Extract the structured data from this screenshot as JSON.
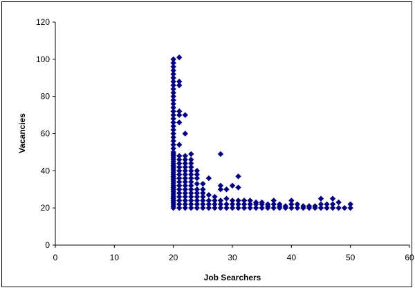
{
  "chart_data": {
    "type": "scatter",
    "title": "",
    "xlabel": "Job Searchers",
    "ylabel": "Vacancies",
    "xlim": [
      0,
      60
    ],
    "ylim": [
      0,
      120
    ],
    "x_ticks": [
      0,
      10,
      20,
      30,
      40,
      50,
      60
    ],
    "y_ticks": [
      0,
      20,
      40,
      60,
      80,
      100,
      120
    ],
    "grid": false,
    "legend": "none",
    "marker": "diamond",
    "marker_color": "#000080",
    "series": [
      {
        "points": [
          [
            20,
            20
          ],
          [
            20,
            21
          ],
          [
            20,
            22
          ],
          [
            20,
            23
          ],
          [
            20,
            24
          ],
          [
            20,
            25
          ],
          [
            20,
            26
          ],
          [
            20,
            27
          ],
          [
            20,
            28
          ],
          [
            20,
            29
          ],
          [
            20,
            30
          ],
          [
            20,
            31
          ],
          [
            20,
            32
          ],
          [
            20,
            33
          ],
          [
            20,
            34
          ],
          [
            20,
            35
          ],
          [
            20,
            36
          ],
          [
            20,
            37
          ],
          [
            20,
            38
          ],
          [
            20,
            39
          ],
          [
            20,
            40
          ],
          [
            20,
            41
          ],
          [
            20,
            42
          ],
          [
            20,
            43
          ],
          [
            20,
            44
          ],
          [
            20,
            45
          ],
          [
            20,
            46
          ],
          [
            20,
            47
          ],
          [
            20,
            48
          ],
          [
            20,
            49
          ],
          [
            20,
            50
          ],
          [
            20,
            52
          ],
          [
            20,
            54
          ],
          [
            20,
            56
          ],
          [
            20,
            58
          ],
          [
            20,
            60
          ],
          [
            20,
            62
          ],
          [
            20,
            64
          ],
          [
            20,
            66
          ],
          [
            20,
            68
          ],
          [
            20,
            70
          ],
          [
            20,
            72
          ],
          [
            20,
            74
          ],
          [
            20,
            76
          ],
          [
            20,
            78
          ],
          [
            20,
            80
          ],
          [
            20,
            82
          ],
          [
            20,
            84
          ],
          [
            20,
            86
          ],
          [
            20,
            88
          ],
          [
            20,
            90
          ],
          [
            20,
            92
          ],
          [
            20,
            94
          ],
          [
            20,
            96
          ],
          [
            20,
            98
          ],
          [
            20,
            100
          ],
          [
            21,
            20
          ],
          [
            21,
            22
          ],
          [
            21,
            24
          ],
          [
            21,
            26
          ],
          [
            21,
            28
          ],
          [
            21,
            30
          ],
          [
            21,
            32
          ],
          [
            21,
            34
          ],
          [
            21,
            36
          ],
          [
            21,
            38
          ],
          [
            21,
            40
          ],
          [
            21,
            42
          ],
          [
            21,
            44
          ],
          [
            21,
            46
          ],
          [
            21,
            48
          ],
          [
            21,
            54
          ],
          [
            21,
            66
          ],
          [
            21,
            70
          ],
          [
            21,
            72
          ],
          [
            21,
            86
          ],
          [
            21,
            88
          ],
          [
            21,
            101
          ],
          [
            22,
            20
          ],
          [
            22,
            22
          ],
          [
            22,
            24
          ],
          [
            22,
            26
          ],
          [
            22,
            28
          ],
          [
            22,
            30
          ],
          [
            22,
            32
          ],
          [
            22,
            34
          ],
          [
            22,
            36
          ],
          [
            22,
            38
          ],
          [
            22,
            40
          ],
          [
            22,
            42
          ],
          [
            22,
            44
          ],
          [
            22,
            46
          ],
          [
            22,
            48
          ],
          [
            22,
            60
          ],
          [
            22,
            70
          ],
          [
            23,
            20
          ],
          [
            23,
            22
          ],
          [
            23,
            24
          ],
          [
            23,
            26
          ],
          [
            23,
            28
          ],
          [
            23,
            30
          ],
          [
            23,
            32
          ],
          [
            23,
            34
          ],
          [
            23,
            36
          ],
          [
            23,
            38
          ],
          [
            23,
            40
          ],
          [
            23,
            42
          ],
          [
            23,
            44
          ],
          [
            23,
            46
          ],
          [
            23,
            49
          ],
          [
            24,
            20
          ],
          [
            24,
            22
          ],
          [
            24,
            24
          ],
          [
            24,
            26
          ],
          [
            24,
            28
          ],
          [
            24,
            30
          ],
          [
            24,
            33
          ],
          [
            24,
            36
          ],
          [
            24,
            38
          ],
          [
            24,
            40
          ],
          [
            25,
            20
          ],
          [
            25,
            22
          ],
          [
            25,
            24
          ],
          [
            25,
            26
          ],
          [
            25,
            28
          ],
          [
            25,
            30
          ],
          [
            25,
            33
          ],
          [
            26,
            20
          ],
          [
            26,
            22
          ],
          [
            26,
            24
          ],
          [
            26,
            27
          ],
          [
            26,
            36
          ],
          [
            27,
            20
          ],
          [
            27,
            22
          ],
          [
            27,
            24
          ],
          [
            27,
            26
          ],
          [
            28,
            20
          ],
          [
            28,
            22
          ],
          [
            28,
            24
          ],
          [
            28,
            30
          ],
          [
            28,
            32
          ],
          [
            28,
            49
          ],
          [
            29,
            20
          ],
          [
            29,
            22
          ],
          [
            29,
            25
          ],
          [
            29,
            30
          ],
          [
            30,
            20
          ],
          [
            30,
            22
          ],
          [
            30,
            24
          ],
          [
            30,
            32
          ],
          [
            31,
            20
          ],
          [
            31,
            22
          ],
          [
            31,
            24
          ],
          [
            31,
            31
          ],
          [
            31,
            37
          ],
          [
            32,
            20
          ],
          [
            32,
            22
          ],
          [
            32,
            24
          ],
          [
            33,
            20
          ],
          [
            33,
            22
          ],
          [
            33,
            24
          ],
          [
            34,
            20
          ],
          [
            34,
            22
          ],
          [
            34,
            23
          ],
          [
            35,
            20
          ],
          [
            35,
            22
          ],
          [
            35,
            23
          ],
          [
            36,
            20
          ],
          [
            36,
            21
          ],
          [
            36,
            22
          ],
          [
            37,
            20
          ],
          [
            37,
            22
          ],
          [
            37,
            24
          ],
          [
            38,
            20
          ],
          [
            38,
            21
          ],
          [
            38,
            22
          ],
          [
            39,
            20
          ],
          [
            39,
            21
          ],
          [
            40,
            20
          ],
          [
            40,
            22
          ],
          [
            40,
            24
          ],
          [
            41,
            20
          ],
          [
            41,
            22
          ],
          [
            42,
            20
          ],
          [
            42,
            21
          ],
          [
            43,
            20
          ],
          [
            43,
            21
          ],
          [
            44,
            20
          ],
          [
            44,
            21
          ],
          [
            45,
            20
          ],
          [
            45,
            22
          ],
          [
            45,
            25
          ],
          [
            46,
            20
          ],
          [
            46,
            22
          ],
          [
            47,
            20
          ],
          [
            47,
            22
          ],
          [
            47,
            25
          ],
          [
            48,
            20
          ],
          [
            48,
            23
          ],
          [
            49,
            20
          ],
          [
            50,
            20
          ],
          [
            50,
            22
          ]
        ]
      }
    ]
  }
}
